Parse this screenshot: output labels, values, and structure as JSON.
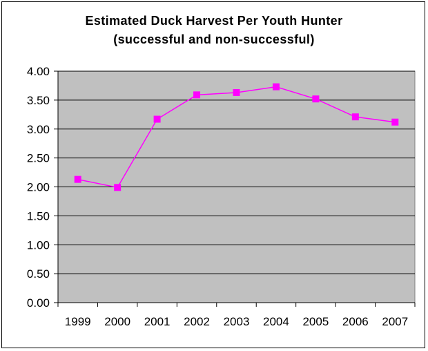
{
  "chart_data": {
    "type": "line",
    "title": "Estimated Duck Harvest Per Youth Hunter",
    "subtitle": "(successful and non-successful)",
    "x": [
      "1999",
      "2000",
      "2001",
      "2002",
      "2003",
      "2004",
      "2005",
      "2006",
      "2007"
    ],
    "series": [
      {
        "values": [
          2.13,
          1.99,
          3.17,
          3.59,
          3.63,
          3.73,
          3.52,
          3.21,
          3.12
        ]
      }
    ],
    "ylim": [
      0,
      4
    ],
    "yticks": [
      "0.00",
      "0.50",
      "1.00",
      "1.50",
      "2.00",
      "2.50",
      "3.00",
      "3.50",
      "4.00"
    ],
    "grid": true,
    "legend": "none",
    "colors": {
      "plot_background": "#c0c0c0",
      "line": "#ff00ff",
      "marker": "#ff00ff"
    }
  }
}
